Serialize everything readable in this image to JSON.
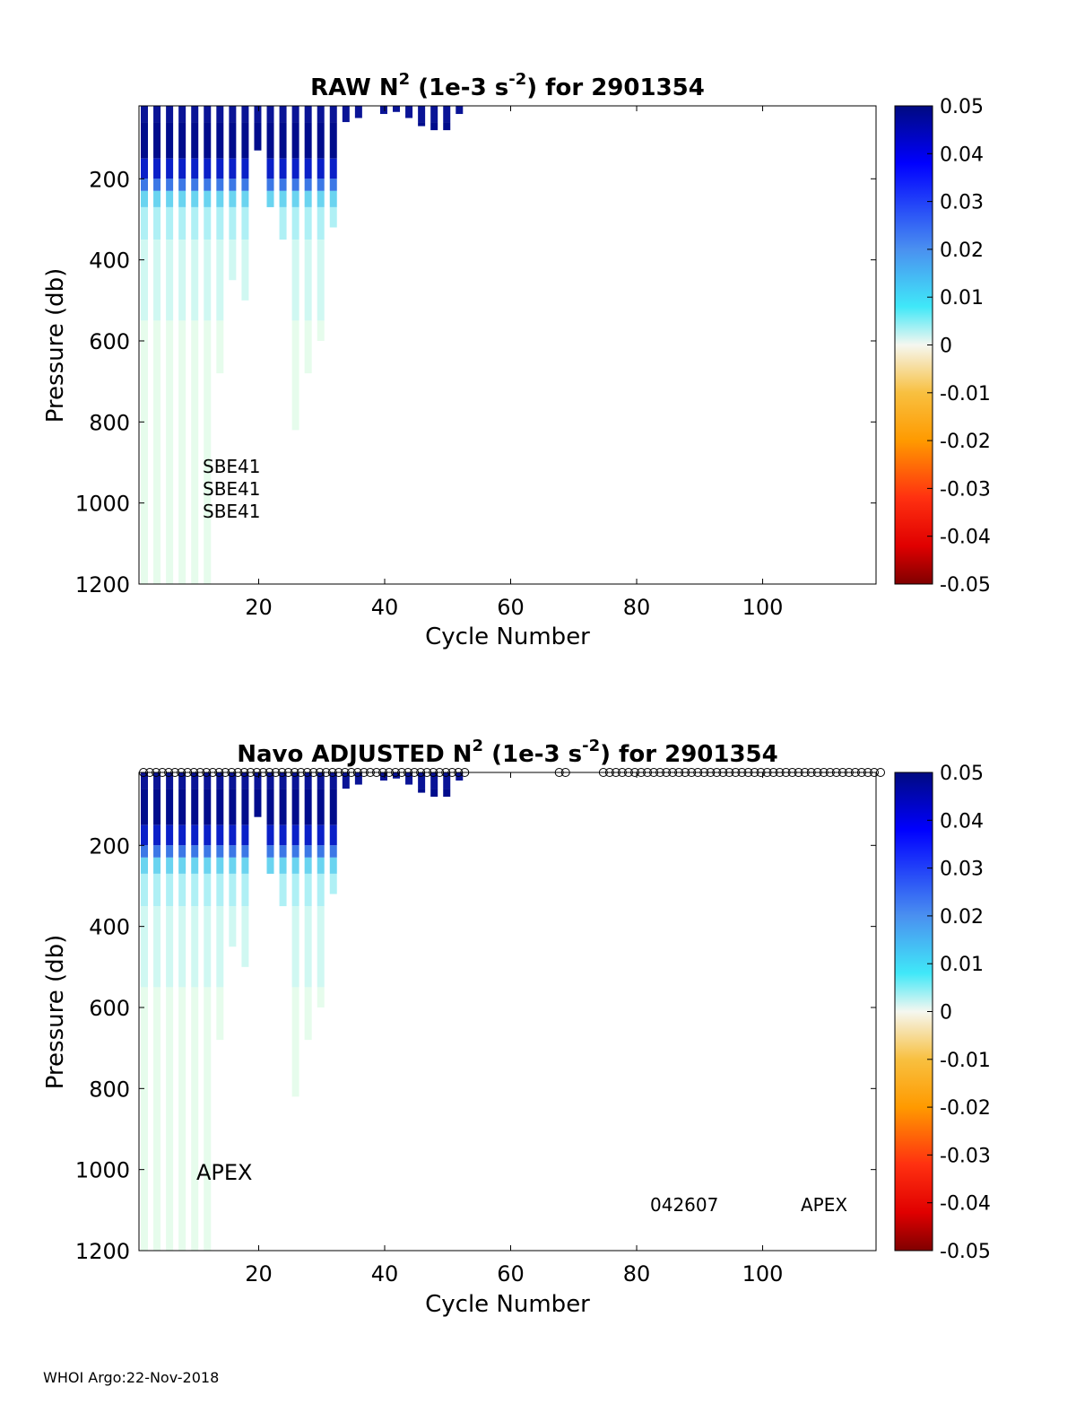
{
  "footer": "WHOI Argo:22-Nov-2018",
  "colorbar": {
    "ticks": [
      "0.05",
      "0.04",
      "0.03",
      "0.02",
      "0.01",
      "0",
      "-0.01",
      "-0.02",
      "-0.03",
      "-0.04",
      "-0.05"
    ],
    "range": [
      -0.05,
      0.05
    ]
  },
  "chart_data": [
    {
      "type": "heatmap",
      "title_prefix": "RAW N",
      "title_sup": "2",
      "title_mid": " (1e-3 s",
      "title_sup2": "-2",
      "title_suffix": ") for 2901354",
      "xlabel": "Cycle Number",
      "ylabel": "Pressure (db)",
      "xlim": [
        1,
        118
      ],
      "ylim": [
        1200,
        20
      ],
      "xticks": [
        "20",
        "40",
        "60",
        "80",
        "100"
      ],
      "yticks": [
        "200",
        "400",
        "600",
        "800",
        "1000",
        "1200"
      ],
      "annotations": [
        "SBE41",
        "SBE41",
        "SBE41"
      ],
      "columns": [
        {
          "cycle": 1,
          "bottom": 1200
        },
        {
          "cycle": 3,
          "bottom": 1200
        },
        {
          "cycle": 5,
          "bottom": 1200
        },
        {
          "cycle": 7,
          "bottom": 1200
        },
        {
          "cycle": 9,
          "bottom": 1200
        },
        {
          "cycle": 11,
          "bottom": 1200
        },
        {
          "cycle": 13,
          "bottom": 680
        },
        {
          "cycle": 15,
          "bottom": 450
        },
        {
          "cycle": 17,
          "bottom": 500
        },
        {
          "cycle": 19,
          "bottom": 130
        },
        {
          "cycle": 21,
          "bottom": 270
        },
        {
          "cycle": 23,
          "bottom": 350
        },
        {
          "cycle": 25,
          "bottom": 820
        },
        {
          "cycle": 27,
          "bottom": 680
        },
        {
          "cycle": 29,
          "bottom": 600
        },
        {
          "cycle": 31,
          "bottom": 320
        },
        {
          "cycle": 33,
          "bottom": 60
        },
        {
          "cycle": 35,
          "bottom": 50
        },
        {
          "cycle": 39,
          "bottom": 40
        },
        {
          "cycle": 41,
          "bottom": 35
        },
        {
          "cycle": 43,
          "bottom": 50
        },
        {
          "cycle": 45,
          "bottom": 70
        },
        {
          "cycle": 47,
          "bottom": 80
        },
        {
          "cycle": 49,
          "bottom": 80
        },
        {
          "cycle": 51,
          "bottom": 40
        }
      ]
    },
    {
      "type": "heatmap",
      "title_prefix": "Navo  ADJUSTED N",
      "title_sup": "2",
      "title_mid": " (1e-3 s",
      "title_sup2": "-2",
      "title_suffix": ") for 2901354",
      "xlabel": "Cycle Number",
      "ylabel": "Pressure (db)",
      "xlim": [
        1,
        118
      ],
      "ylim": [
        1200,
        20
      ],
      "xticks": [
        "20",
        "40",
        "60",
        "80",
        "100"
      ],
      "yticks": [
        "200",
        "400",
        "600",
        "800",
        "1000",
        "1200"
      ],
      "annotations": [
        "APEX",
        "042607",
        "APEX"
      ],
      "marker_cycles_ranges": [
        [
          1,
          52
        ],
        [
          67,
          68
        ],
        [
          74,
          118
        ]
      ]
    }
  ]
}
